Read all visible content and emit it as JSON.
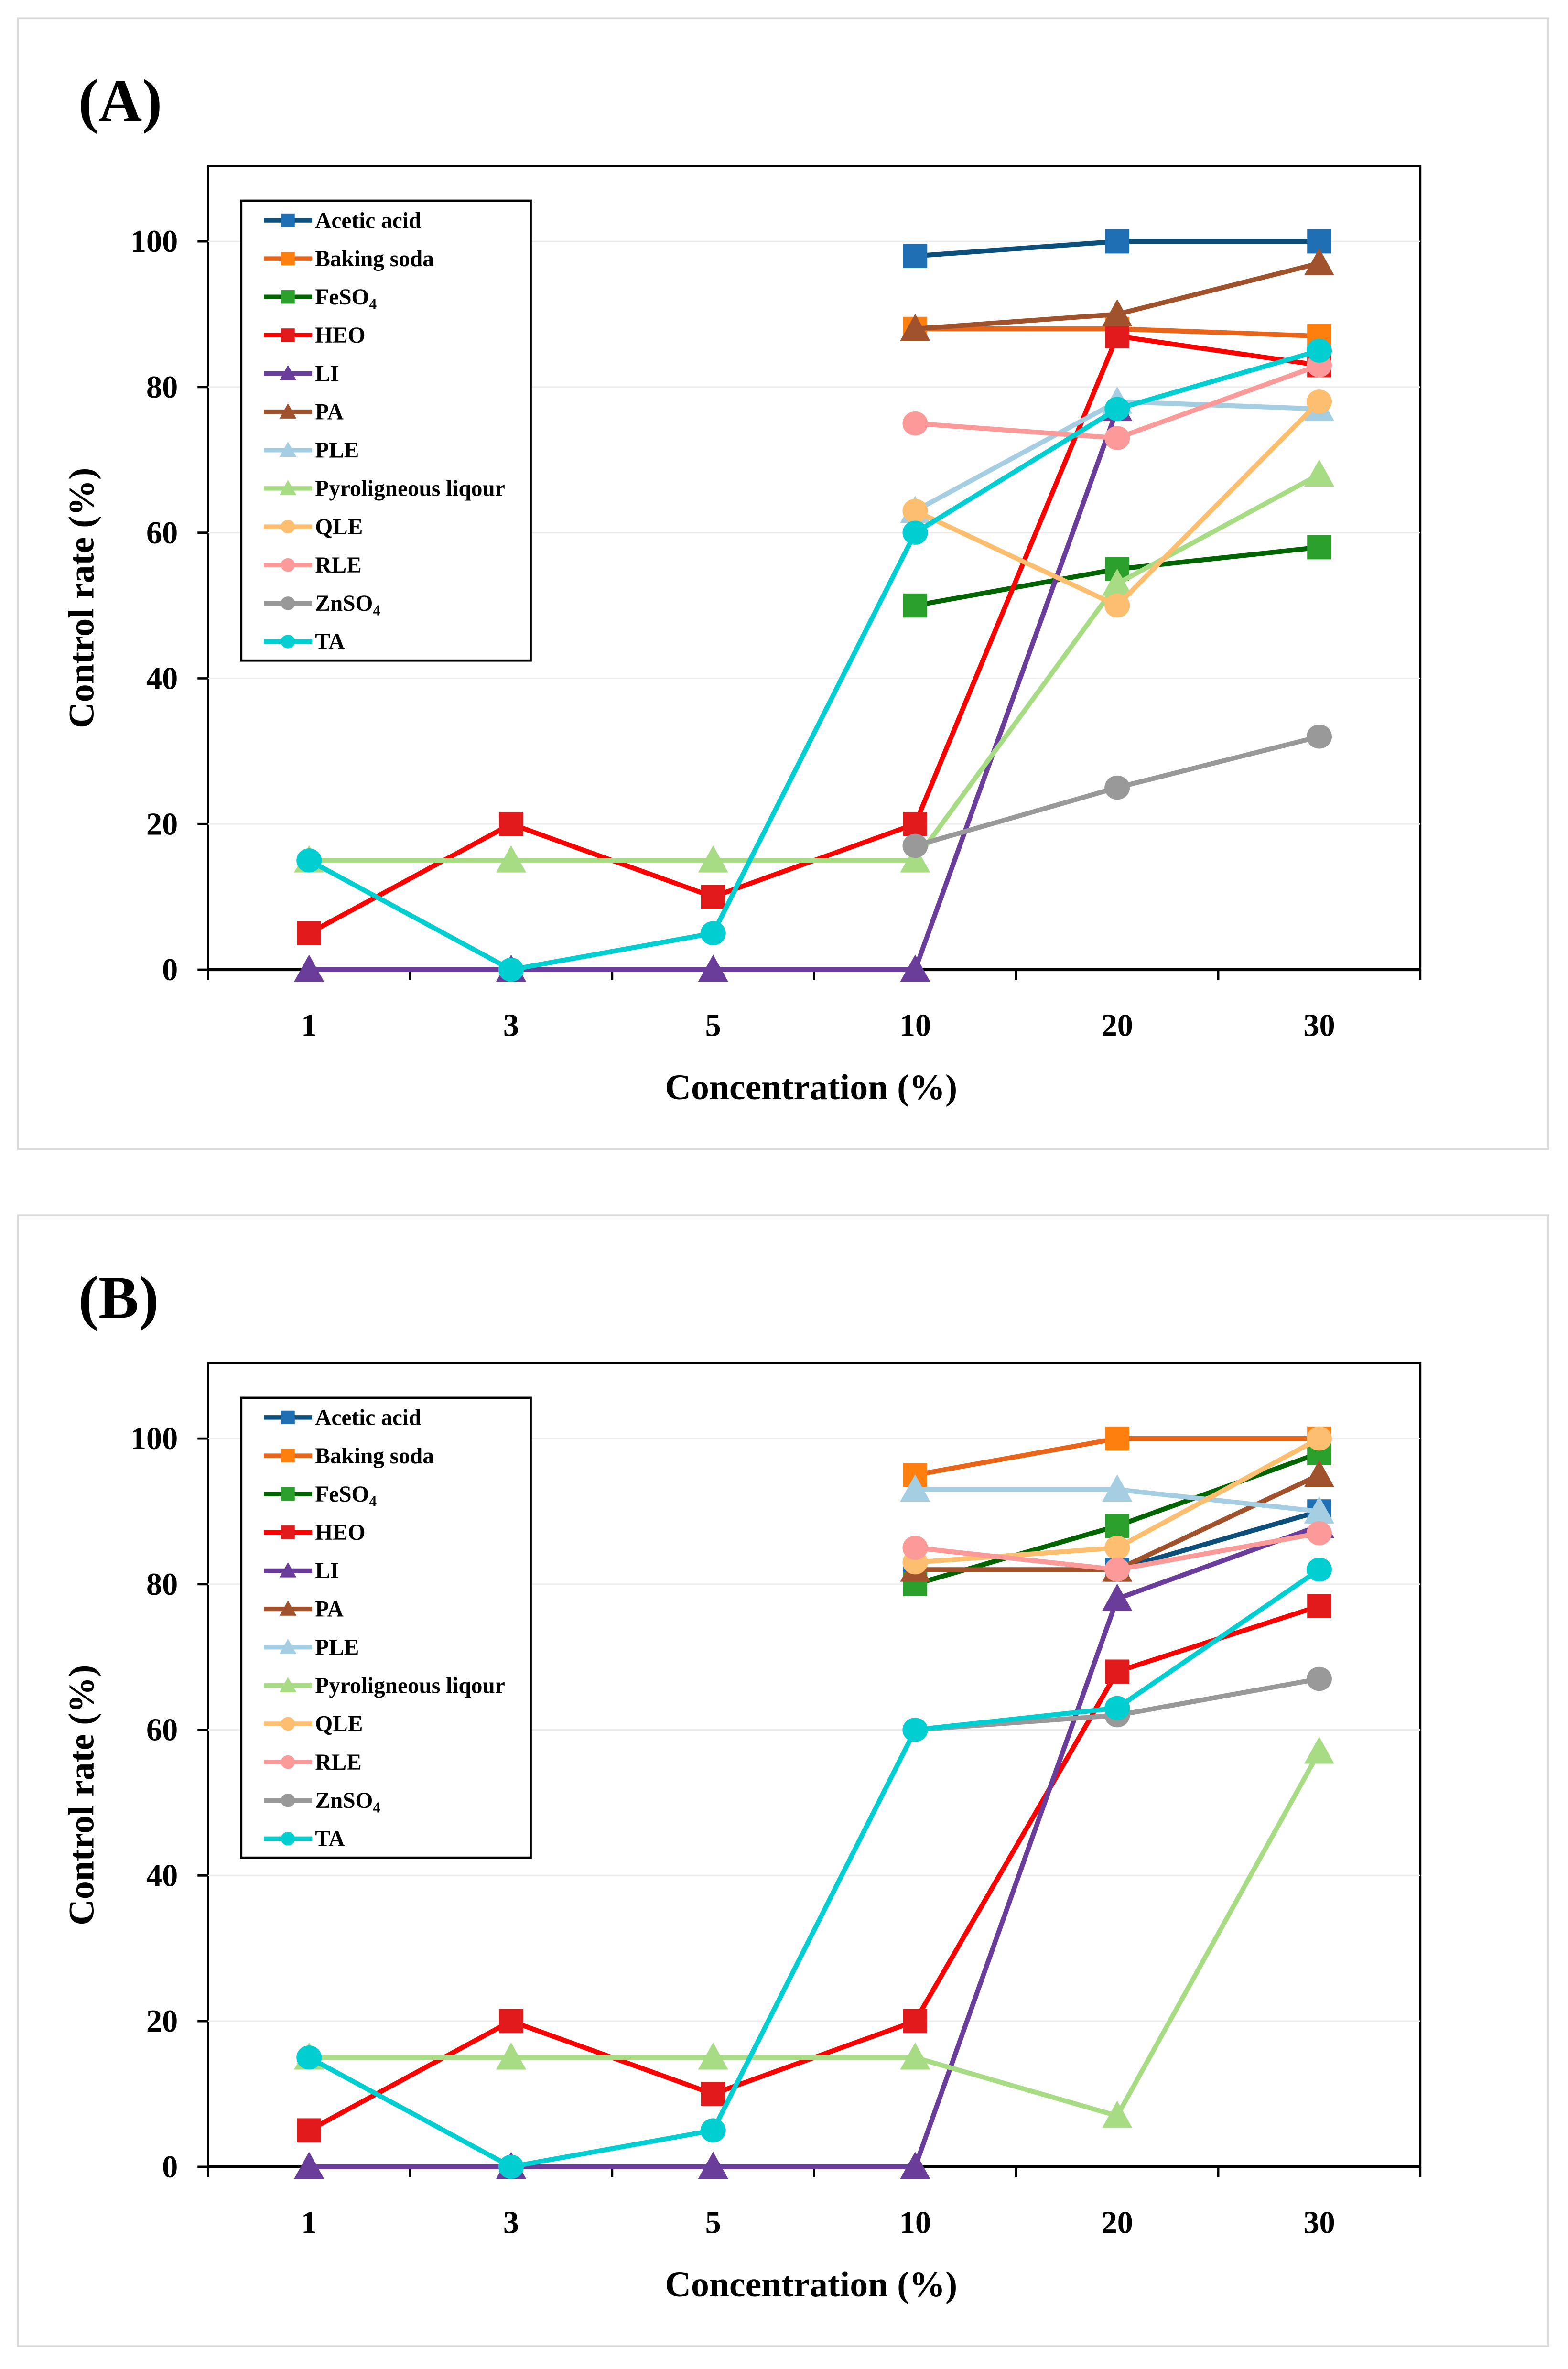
{
  "chart_data": [
    {
      "type": "line",
      "panel_label": "(A)",
      "xlabel": "Concentration (%)",
      "ylabel": "Control rate (%)",
      "categories": [
        "1",
        "3",
        "5",
        "10",
        "20",
        "30"
      ],
      "ylim": [
        0,
        110
      ],
      "yticks": [
        0,
        20,
        40,
        60,
        80,
        100
      ],
      "grid": true,
      "legend_position": "top-left",
      "series": [
        {
          "name": "Acetic acid",
          "marker": "square",
          "color": "#1f6fb4",
          "line": "#0b4f7a",
          "values": [
            null,
            null,
            null,
            98,
            100,
            100
          ]
        },
        {
          "name": "Baking soda",
          "marker": "square",
          "color": "#ff7f0e",
          "line": "#e8651a",
          "values": [
            null,
            null,
            null,
            88,
            88,
            87
          ]
        },
        {
          "name": "FeSO4",
          "marker": "square",
          "color": "#2ca02c",
          "line": "#006400",
          "values": [
            null,
            null,
            null,
            50,
            55,
            58
          ]
        },
        {
          "name": "HEO",
          "marker": "square",
          "color": "#e31a1c",
          "line": "#ff0000",
          "values": [
            5,
            20,
            10,
            20,
            87,
            83
          ]
        },
        {
          "name": "LI",
          "marker": "triangle",
          "color": "#6a3d9a",
          "line": "#6a3d9a",
          "values": [
            0,
            0,
            0,
            0,
            77,
            null
          ]
        },
        {
          "name": "PA",
          "marker": "triangle",
          "color": "#a0522d",
          "line": "#a0522d",
          "values": [
            null,
            null,
            null,
            88,
            90,
            97
          ]
        },
        {
          "name": "PLE",
          "marker": "triangle",
          "color": "#a6cee3",
          "line": "#a6cee3",
          "values": [
            null,
            null,
            null,
            63,
            78,
            77
          ]
        },
        {
          "name": "Pyroligneous liqour",
          "marker": "triangle",
          "color": "#a8dc84",
          "line": "#a8dc84",
          "values": [
            15,
            15,
            15,
            15,
            53,
            68
          ]
        },
        {
          "name": "QLE",
          "marker": "circle",
          "color": "#fdbf6f",
          "line": "#fdbf6f",
          "values": [
            null,
            null,
            null,
            63,
            50,
            78
          ]
        },
        {
          "name": "RLE",
          "marker": "circle",
          "color": "#fb9a99",
          "line": "#fb9a99",
          "values": [
            null,
            null,
            null,
            75,
            73,
            83
          ]
        },
        {
          "name": "ZnSO4",
          "marker": "circle",
          "color": "#999999",
          "line": "#999999",
          "values": [
            null,
            null,
            null,
            17,
            25,
            32
          ]
        },
        {
          "name": "TA",
          "marker": "circle",
          "color": "#00ced1",
          "line": "#00ced1",
          "values": [
            15,
            0,
            5,
            60,
            77,
            85
          ]
        }
      ]
    },
    {
      "type": "line",
      "panel_label": "(B)",
      "xlabel": "Concentration (%)",
      "ylabel": "Control rate (%)",
      "categories": [
        "1",
        "3",
        "5",
        "10",
        "20",
        "30"
      ],
      "ylim": [
        0,
        110
      ],
      "yticks": [
        0,
        20,
        40,
        60,
        80,
        100
      ],
      "grid": true,
      "legend_position": "top-left",
      "series": [
        {
          "name": "Acetic acid",
          "marker": "square",
          "color": "#1f6fb4",
          "line": "#0b4f7a",
          "values": [
            null,
            null,
            null,
            82,
            82,
            90
          ]
        },
        {
          "name": "Baking soda",
          "marker": "square",
          "color": "#ff7f0e",
          "line": "#e8651a",
          "values": [
            null,
            null,
            null,
            95,
            100,
            100
          ]
        },
        {
          "name": "FeSO4",
          "marker": "square",
          "color": "#2ca02c",
          "line": "#006400",
          "values": [
            null,
            null,
            null,
            80,
            88,
            98
          ]
        },
        {
          "name": "HEO",
          "marker": "square",
          "color": "#e31a1c",
          "line": "#ff0000",
          "values": [
            5,
            20,
            10,
            20,
            68,
            77
          ]
        },
        {
          "name": "LI",
          "marker": "triangle",
          "color": "#6a3d9a",
          "line": "#6a3d9a",
          "values": [
            0,
            0,
            0,
            0,
            78,
            88
          ]
        },
        {
          "name": "PA",
          "marker": "triangle",
          "color": "#a0522d",
          "line": "#a0522d",
          "values": [
            null,
            null,
            null,
            82,
            82,
            95
          ]
        },
        {
          "name": "PLE",
          "marker": "triangle",
          "color": "#a6cee3",
          "line": "#a6cee3",
          "values": [
            null,
            null,
            null,
            93,
            93,
            90
          ]
        },
        {
          "name": "Pyroligneous liqour",
          "marker": "triangle",
          "color": "#a8dc84",
          "line": "#a8dc84",
          "values": [
            15,
            15,
            15,
            15,
            7,
            57
          ]
        },
        {
          "name": "QLE",
          "marker": "circle",
          "color": "#fdbf6f",
          "line": "#fdbf6f",
          "values": [
            null,
            null,
            null,
            83,
            85,
            100
          ]
        },
        {
          "name": "RLE",
          "marker": "circle",
          "color": "#fb9a99",
          "line": "#fb9a99",
          "values": [
            null,
            null,
            null,
            85,
            82,
            87
          ]
        },
        {
          "name": "ZnSO4",
          "marker": "circle",
          "color": "#999999",
          "line": "#999999",
          "values": [
            null,
            null,
            null,
            60,
            62,
            67
          ]
        },
        {
          "name": "TA",
          "marker": "circle",
          "color": "#00ced1",
          "line": "#00ced1",
          "values": [
            15,
            0,
            5,
            60,
            63,
            82
          ]
        }
      ]
    }
  ]
}
